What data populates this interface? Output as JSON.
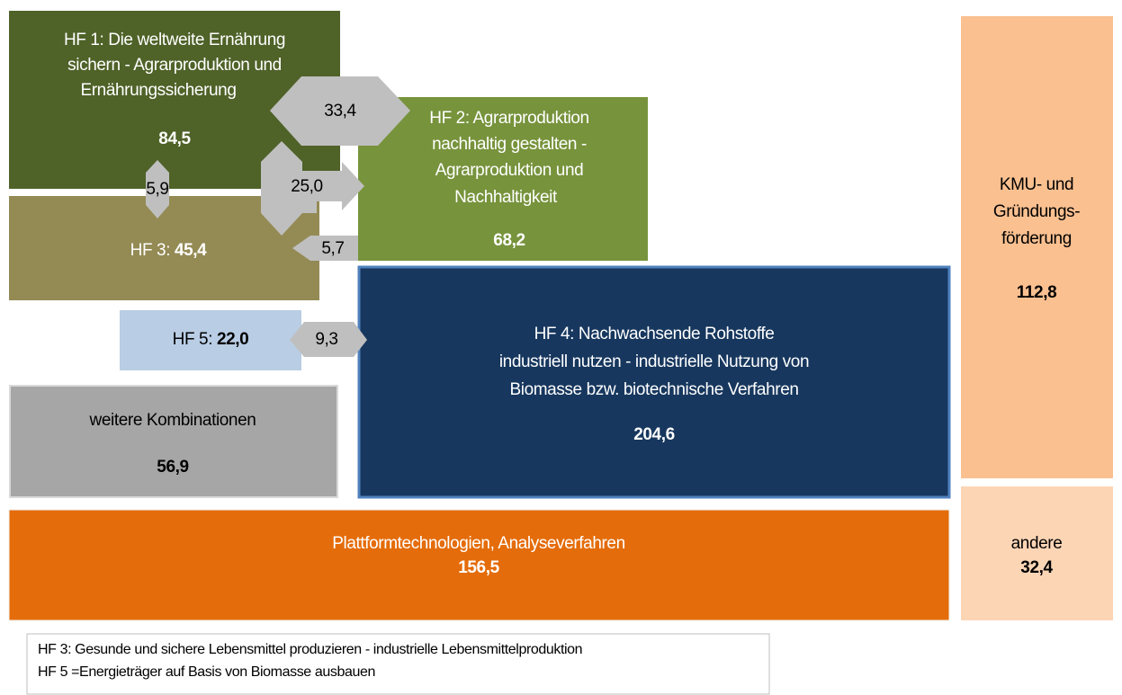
{
  "boxes": {
    "hf1": {
      "lines": [
        "HF 1: Die weltweite Ernährung",
        "sichern -  Agrarproduktion und",
        "Ernährungssicherung"
      ],
      "value": "84,5"
    },
    "hf2": {
      "lines": [
        "HF 2: Agrarproduktion",
        "nachhaltig gestalten -",
        "Agrarproduktion und",
        "Nachhaltigkeit"
      ],
      "value": "68,2"
    },
    "hf3": {
      "label": "HF 3:",
      "value": "45,4"
    },
    "hf5": {
      "label": "HF 5:",
      "value": "22,0"
    },
    "hf4": {
      "lines": [
        "HF 4: Nachwachsende Rohstoffe",
        "industriell nutzen  -  industrielle Nutzung von",
        "Biomasse bzw. biotechnische Verfahren"
      ],
      "value": "204,6"
    },
    "weitere": {
      "lines": [
        "weitere Kombinationen"
      ],
      "value": "56,9"
    },
    "plattform": {
      "lines": [
        "Plattformtechnologien, Analyseverfahren"
      ],
      "value": "156,5"
    },
    "kmu": {
      "lines": [
        "KMU- und",
        "Gründungs-",
        "förderung"
      ],
      "value": "112,8"
    },
    "andere": {
      "lines": [
        "andere"
      ],
      "value": "32,4"
    }
  },
  "flows": {
    "hf1_hf2": "33,4",
    "hf1_hf3": "5,9",
    "hf1_hf2_hf3": "25,0",
    "hf3_hf2": "5,7",
    "hf5_hf4": "9,3"
  },
  "legend": [
    "HF 3: Gesunde und sichere Lebensmittel produzieren -  industrielle Lebensmittelproduktion",
    "HF 5 =Energieträger auf  Basis von Biomasse ausbauen"
  ]
}
